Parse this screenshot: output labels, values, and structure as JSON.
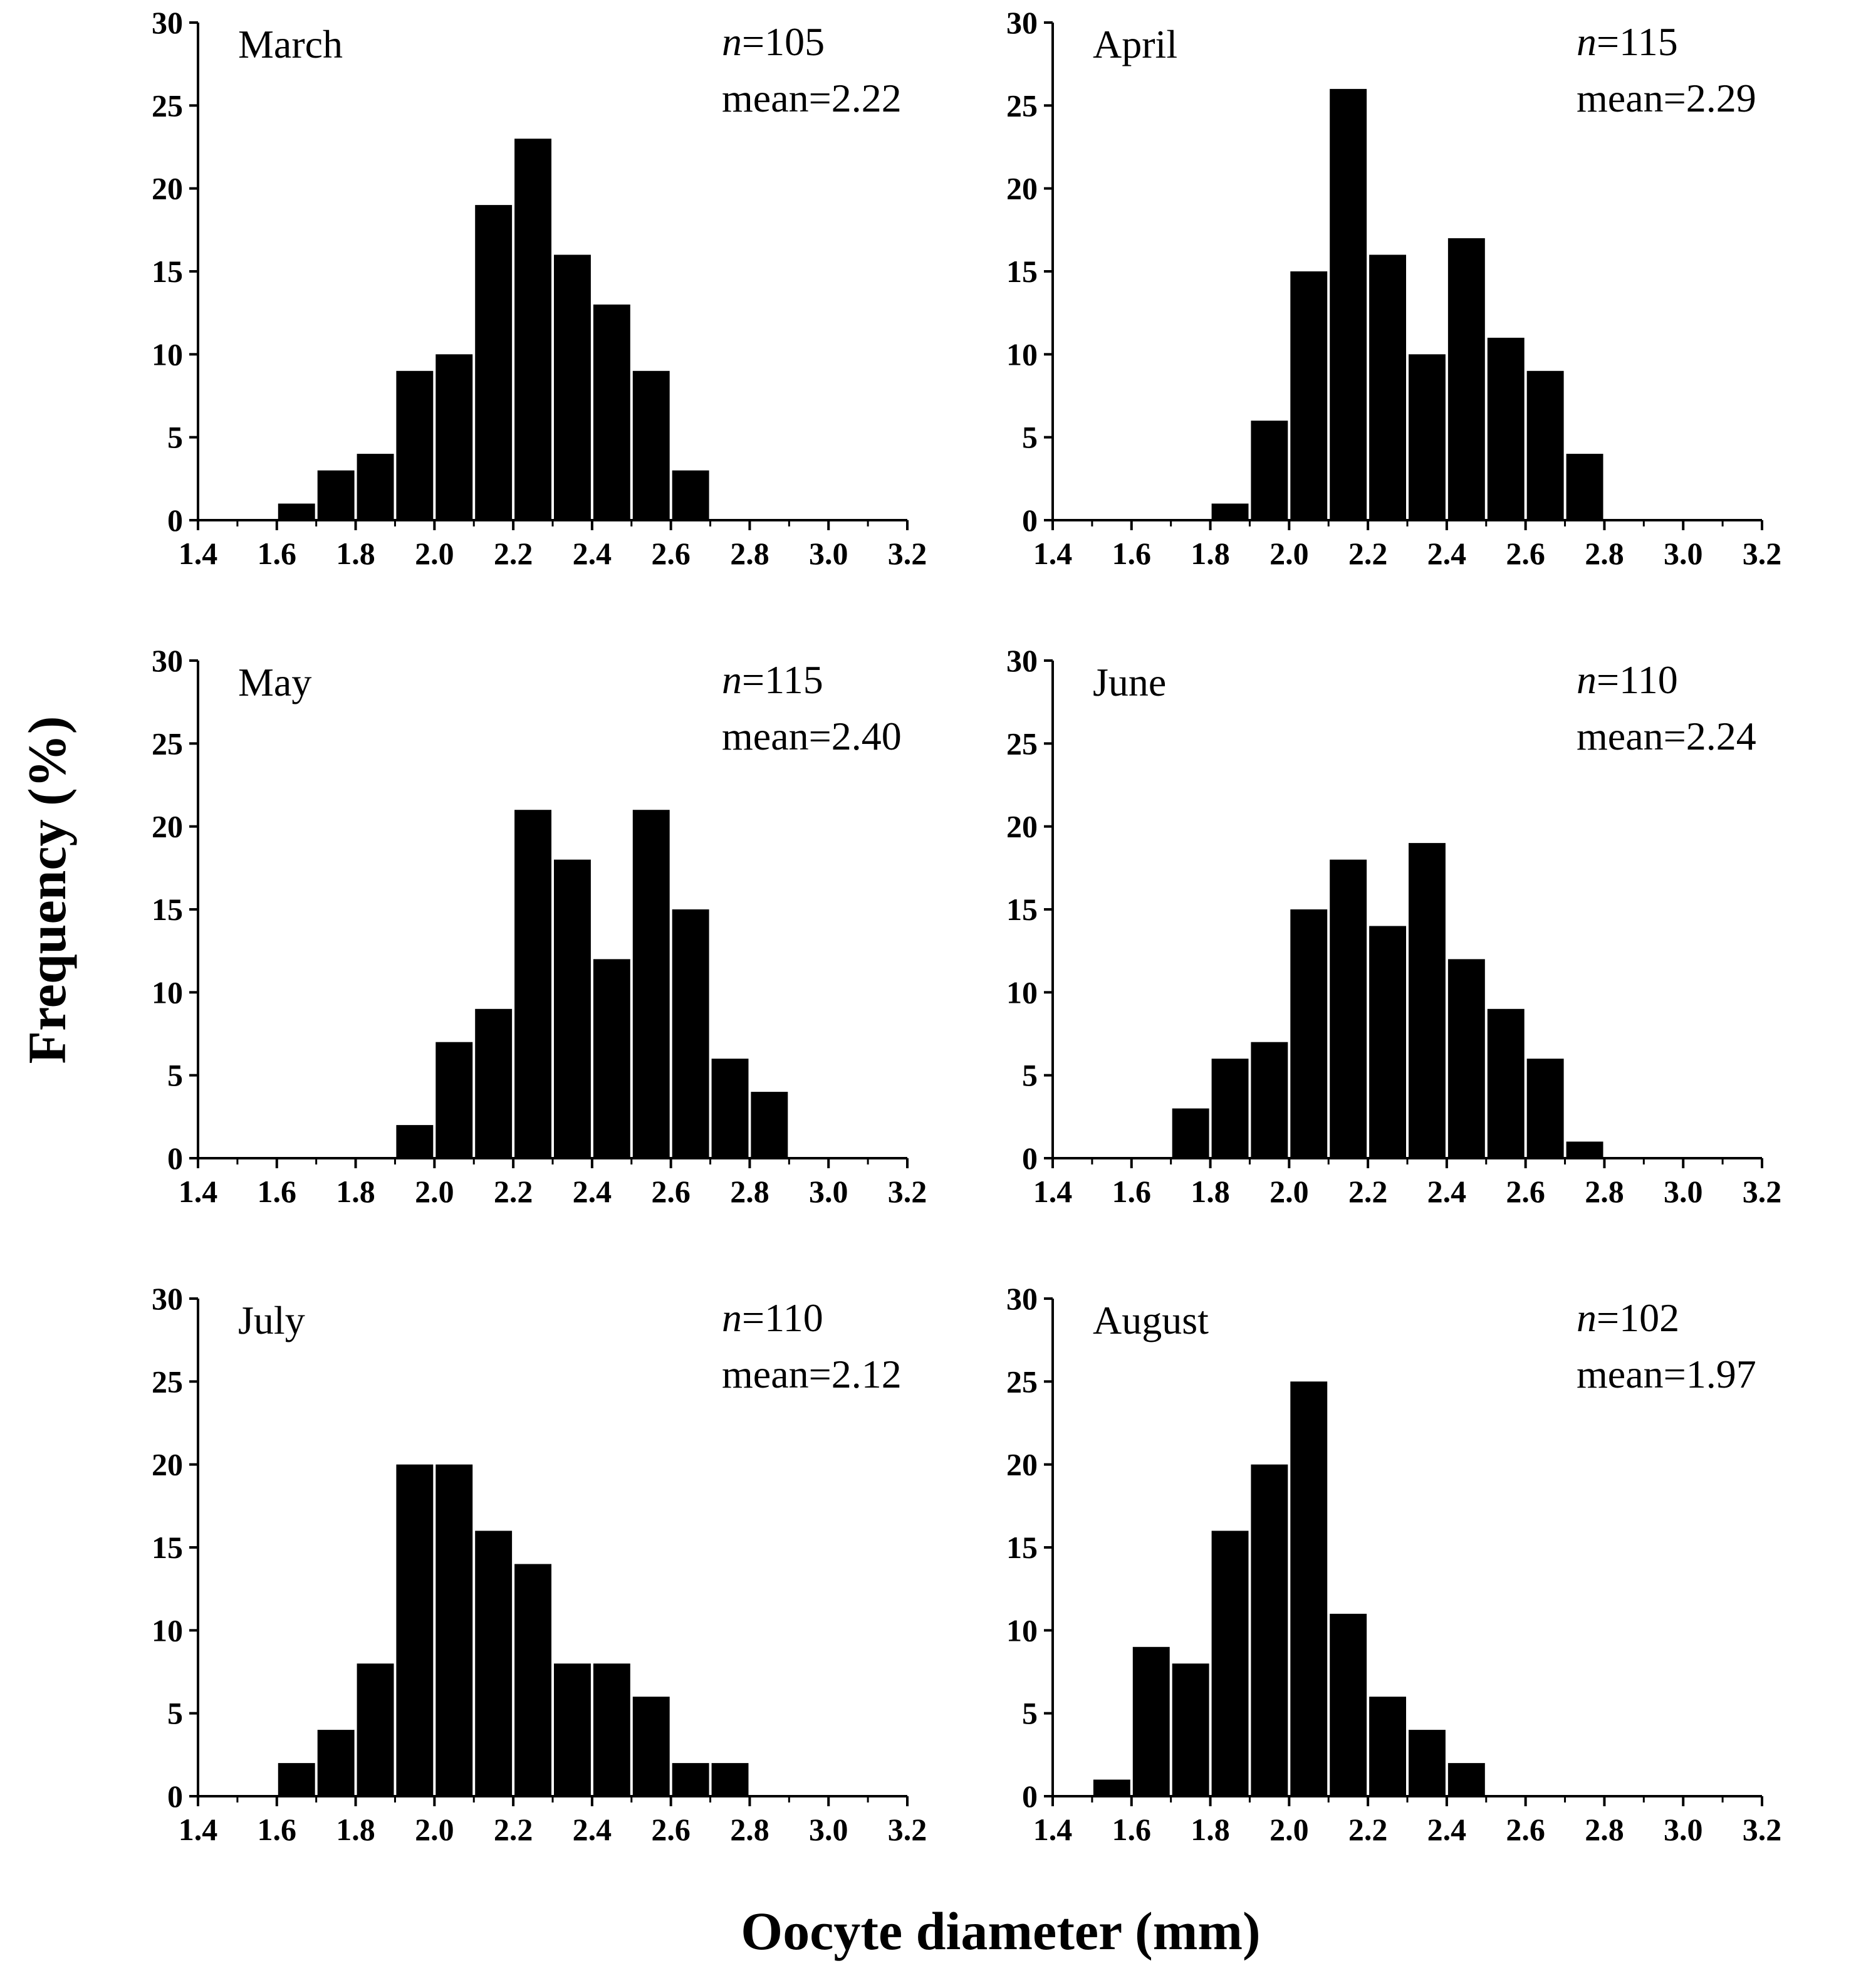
{
  "figure": {
    "ylabel": "Frequency (%)",
    "xlabel": "Oocyte diameter (mm)",
    "x_ticks": [
      "1.4",
      "1.6",
      "1.8",
      "2.0",
      "2.2",
      "2.4",
      "2.6",
      "2.8",
      "3.0",
      "3.2"
    ],
    "y_ticks": [
      "0",
      "5",
      "10",
      "15",
      "20",
      "25",
      "30"
    ],
    "n_prefix": "n",
    "bar_color": "#000000"
  },
  "chart_data": [
    {
      "type": "bar",
      "title": "March",
      "n_value": "=105",
      "mean_text": "mean=2.22",
      "xlim": [
        1.4,
        3.2
      ],
      "ylim": [
        0,
        30
      ],
      "bin_width": 0.1,
      "bin_starts": [
        1.6,
        1.7,
        1.8,
        1.9,
        2.0,
        2.1,
        2.2,
        2.3,
        2.4,
        2.5,
        2.6
      ],
      "values": [
        1,
        3,
        4,
        9,
        10,
        19,
        23,
        16,
        13,
        9,
        3
      ]
    },
    {
      "type": "bar",
      "title": "April",
      "n_value": "=115",
      "mean_text": "mean=2.29",
      "xlim": [
        1.4,
        3.2
      ],
      "ylim": [
        0,
        30
      ],
      "bin_width": 0.1,
      "bin_starts": [
        1.8,
        1.9,
        2.0,
        2.1,
        2.2,
        2.3,
        2.4,
        2.5,
        2.6,
        2.7
      ],
      "values": [
        1,
        6,
        15,
        26,
        16,
        10,
        17,
        11,
        9,
        4
      ]
    },
    {
      "type": "bar",
      "title": "May",
      "n_value": "=115",
      "mean_text": "mean=2.40",
      "xlim": [
        1.4,
        3.2
      ],
      "ylim": [
        0,
        30
      ],
      "bin_width": 0.1,
      "bin_starts": [
        1.9,
        2.0,
        2.1,
        2.2,
        2.3,
        2.4,
        2.5,
        2.6,
        2.7,
        2.8
      ],
      "values": [
        2,
        7,
        9,
        21,
        18,
        12,
        21,
        15,
        6,
        4
      ]
    },
    {
      "type": "bar",
      "title": "June",
      "n_value": "=110",
      "mean_text": "mean=2.24",
      "xlim": [
        1.4,
        3.2
      ],
      "ylim": [
        0,
        30
      ],
      "bin_width": 0.1,
      "bin_starts": [
        1.7,
        1.8,
        1.9,
        2.0,
        2.1,
        2.2,
        2.3,
        2.4,
        2.5,
        2.6,
        2.7
      ],
      "values": [
        3,
        6,
        7,
        15,
        18,
        14,
        19,
        12,
        9,
        6,
        1
      ]
    },
    {
      "type": "bar",
      "title": "July",
      "n_value": "=110",
      "mean_text": "mean=2.12",
      "xlim": [
        1.4,
        3.2
      ],
      "ylim": [
        0,
        30
      ],
      "bin_width": 0.1,
      "bin_starts": [
        1.6,
        1.7,
        1.8,
        1.9,
        2.0,
        2.1,
        2.2,
        2.3,
        2.4,
        2.5,
        2.6,
        2.7
      ],
      "values": [
        2,
        4,
        8,
        20,
        20,
        16,
        14,
        8,
        8,
        6,
        2,
        2
      ]
    },
    {
      "type": "bar",
      "title": "August",
      "n_value": "=102",
      "mean_text": "mean=1.97",
      "xlim": [
        1.4,
        3.2
      ],
      "ylim": [
        0,
        30
      ],
      "bin_width": 0.1,
      "bin_starts": [
        1.5,
        1.6,
        1.7,
        1.8,
        1.9,
        2.0,
        2.1,
        2.2,
        2.3,
        2.4
      ],
      "values": [
        1,
        9,
        8,
        16,
        20,
        25,
        11,
        6,
        4,
        2
      ]
    }
  ]
}
